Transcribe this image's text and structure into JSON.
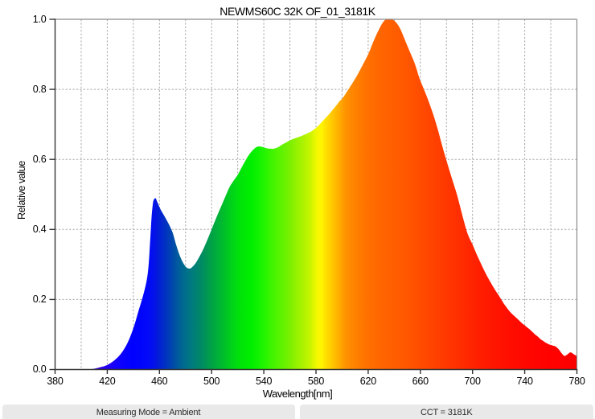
{
  "chart_data": {
    "type": "area",
    "title": "NEWMS60C 32K OF_01_3181K",
    "xlabel": "Wavelength[nm]",
    "ylabel": "Relative value",
    "xlim": [
      380,
      780
    ],
    "ylim": [
      0.0,
      1.0
    ],
    "x_tick_labels": [
      "380",
      "420",
      "460",
      "500",
      "540",
      "580",
      "620",
      "660",
      "700",
      "740",
      "780"
    ],
    "x_tick_values": [
      380,
      420,
      460,
      500,
      540,
      580,
      620,
      660,
      700,
      740,
      780
    ],
    "x_grid_step": 20,
    "y_tick_labels": [
      "0.0",
      "0.2",
      "0.4",
      "0.6",
      "0.8",
      "1.0"
    ],
    "y_tick_values": [
      0.0,
      0.2,
      0.4,
      0.6,
      0.8,
      1.0
    ],
    "grid": "dashed, light gray, vertical every 20nm, horizontal every 0.2",
    "legend": "none",
    "fill": "spectral-wavelength-gradient",
    "x": [
      380,
      400,
      404,
      408,
      412,
      416,
      420,
      425,
      430,
      435,
      440,
      444,
      447,
      450,
      451.5,
      453,
      454.5,
      455.7,
      456.9,
      458.3,
      461,
      464,
      467,
      470,
      473,
      476,
      479,
      481.5,
      483.5,
      485.5,
      487.5,
      490,
      493,
      496,
      499,
      502,
      505,
      508,
      511,
      514,
      517,
      520,
      523,
      526,
      529,
      532,
      534.5,
      536.5,
      539,
      542,
      545,
      548,
      551,
      554,
      557,
      560,
      563,
      566,
      569,
      572,
      575,
      578,
      580,
      582,
      584,
      586,
      588,
      590,
      592,
      594,
      596,
      598,
      600,
      604,
      608,
      612,
      616,
      620,
      623,
      626,
      628,
      630,
      632,
      633.5,
      635,
      637.5,
      639,
      641,
      643,
      645,
      647,
      649,
      651,
      653,
      655,
      657,
      659,
      661,
      663,
      665,
      667,
      669,
      670,
      672,
      674,
      676,
      678,
      680,
      682,
      684,
      686,
      688,
      690,
      692,
      694,
      696,
      698,
      700,
      702,
      704,
      706,
      708,
      710,
      712,
      714,
      716,
      718,
      720,
      722,
      724,
      726,
      728,
      730,
      732,
      734,
      736,
      738,
      740,
      742,
      744,
      746,
      748,
      750,
      752,
      754,
      756,
      758,
      760,
      762,
      764,
      766,
      768,
      770.5,
      773,
      775,
      777.5,
      780
    ],
    "values": [
      0,
      0,
      0.0005,
      0.001,
      0.004,
      0.008,
      0.013,
      0.025,
      0.043,
      0.072,
      0.118,
      0.168,
      0.205,
      0.25,
      0.29,
      0.375,
      0.458,
      0.485,
      0.4895,
      0.479,
      0.456,
      0.437,
      0.4165,
      0.392,
      0.3535,
      0.3215,
      0.2995,
      0.2895,
      0.2885,
      0.294,
      0.3025,
      0.318,
      0.339,
      0.364,
      0.391,
      0.419,
      0.446,
      0.472,
      0.498,
      0.523,
      0.54,
      0.556,
      0.577,
      0.597,
      0.615,
      0.628,
      0.6355,
      0.637,
      0.6355,
      0.632,
      0.6305,
      0.631,
      0.635,
      0.642,
      0.648,
      0.654,
      0.659,
      0.663,
      0.667,
      0.672,
      0.677,
      0.684,
      0.69,
      0.697,
      0.705,
      0.713,
      0.721,
      0.729,
      0.738,
      0.747,
      0.756,
      0.766,
      0.773,
      0.795,
      0.818,
      0.843,
      0.871,
      0.9,
      0.9275,
      0.9535,
      0.969,
      0.9835,
      0.9945,
      0.9995,
      1.0,
      1.0,
      0.9985,
      0.9925,
      0.983,
      0.9695,
      0.952,
      0.9335,
      0.9155,
      0.898,
      0.8805,
      0.8595,
      0.835,
      0.8155,
      0.7975,
      0.779,
      0.759,
      0.738,
      0.727,
      0.703,
      0.677,
      0.649,
      0.622,
      0.597,
      0.572,
      0.548,
      0.524,
      0.5,
      0.472,
      0.443,
      0.415,
      0.39,
      0.372,
      0.357,
      0.339,
      0.322,
      0.306,
      0.29,
      0.275,
      0.261,
      0.248,
      0.235,
      0.223,
      0.212,
      0.2,
      0.188,
      0.178,
      0.168,
      0.16,
      0.153,
      0.146,
      0.139,
      0.132,
      0.126,
      0.12,
      0.114,
      0.107,
      0.1,
      0.094,
      0.087,
      0.082,
      0.077,
      0.073,
      0.07,
      0.068,
      0.065,
      0.058,
      0.048,
      0.039,
      0.044,
      0.049,
      0.044,
      0.0385
    ],
    "gradient_stops": [
      [
        400,
        "#5200c0"
      ],
      [
        405,
        "#4a00c8"
      ],
      [
        410,
        "#3c00d8"
      ],
      [
        415,
        "#3000e6"
      ],
      [
        420,
        "#2400f2"
      ],
      [
        425,
        "#1800fa"
      ],
      [
        430,
        "#0e00ff"
      ],
      [
        435,
        "#0600ff"
      ],
      [
        440,
        "#0000ff"
      ],
      [
        445,
        "#0104fc"
      ],
      [
        450,
        "#0208fa"
      ],
      [
        455,
        "#0310ee"
      ],
      [
        458,
        "#0318dc"
      ],
      [
        462,
        "#0228cc"
      ],
      [
        466,
        "#0038bc"
      ],
      [
        470,
        "#0048ab"
      ],
      [
        474,
        "#005a9c"
      ],
      [
        478,
        "#00688f"
      ],
      [
        482,
        "#007487"
      ],
      [
        486,
        "#007d7a"
      ],
      [
        490,
        "#00856c"
      ],
      [
        494,
        "#008f5c"
      ],
      [
        498,
        "#009c4c"
      ],
      [
        502,
        "#00a840"
      ],
      [
        506,
        "#00b434"
      ],
      [
        510,
        "#00c128"
      ],
      [
        514,
        "#00ce1c"
      ],
      [
        518,
        "#00da12"
      ],
      [
        522,
        "#00e30a"
      ],
      [
        526,
        "#00e904"
      ],
      [
        530,
        "#00ee00"
      ],
      [
        535,
        "#0cf200"
      ],
      [
        540,
        "#22f400"
      ],
      [
        545,
        "#3af400"
      ],
      [
        550,
        "#50f400"
      ],
      [
        555,
        "#64f200"
      ],
      [
        560,
        "#7af000"
      ],
      [
        565,
        "#95f200"
      ],
      [
        570,
        "#abf200"
      ],
      [
        575,
        "#c4f400"
      ],
      [
        580,
        "#eef800"
      ],
      [
        583,
        "#fdf600"
      ],
      [
        585,
        "#fff200"
      ],
      [
        586,
        "#ffe800"
      ],
      [
        590,
        "#ffd400"
      ],
      [
        594,
        "#ffc000"
      ],
      [
        598,
        "#ffac00"
      ],
      [
        602,
        "#ff9600"
      ],
      [
        606,
        "#ff8a00"
      ],
      [
        610,
        "#ff8200"
      ],
      [
        615,
        "#ff7800"
      ],
      [
        620,
        "#ff7000"
      ],
      [
        627,
        "#ff6800"
      ],
      [
        634,
        "#ff6200"
      ],
      [
        642,
        "#ff5c00"
      ],
      [
        650,
        "#ff5600"
      ],
      [
        658,
        "#ff4e00"
      ],
      [
        666,
        "#ff4600"
      ],
      [
        674,
        "#ff3e00"
      ],
      [
        682,
        "#ff3600"
      ],
      [
        690,
        "#ff2e00"
      ],
      [
        698,
        "#ff2600"
      ],
      [
        706,
        "#ff1e00"
      ],
      [
        714,
        "#ff1800"
      ],
      [
        722,
        "#ff1200"
      ],
      [
        730,
        "#ff0d00"
      ],
      [
        740,
        "#ff0800"
      ],
      [
        750,
        "#ff0400"
      ],
      [
        760,
        "#ff0200"
      ],
      [
        770,
        "#fd0000"
      ],
      [
        780,
        "#fa0000"
      ]
    ]
  },
  "footer": {
    "left": "Measuring Mode = Ambient",
    "right": "CCT = 3181K"
  },
  "colors": {
    "background": "#ffffff",
    "grid": "#a5a5a5",
    "axis": "#333333",
    "spine": "#8a8a8a",
    "text": "#000000",
    "footer_bg": "#e9e9e9",
    "footer_text": "#2b2b2b"
  }
}
